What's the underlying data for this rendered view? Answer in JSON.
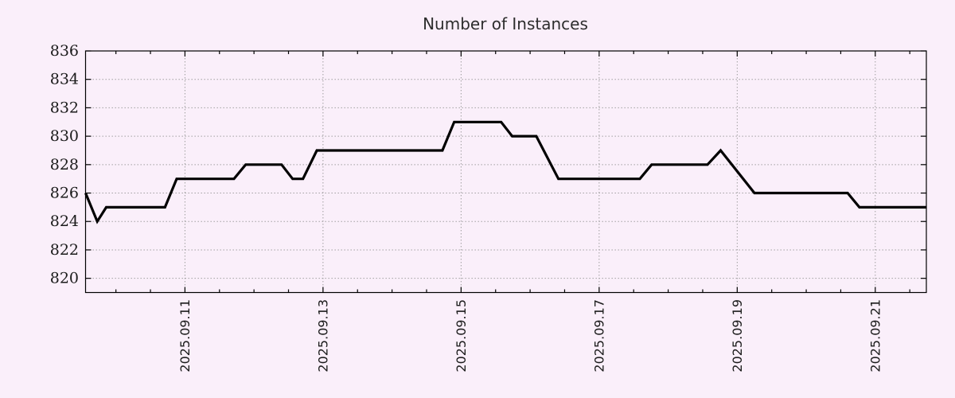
{
  "title": "Number of Instances",
  "colors": {
    "background": "#faeffa",
    "grid": "#9a9a9a",
    "axis_border": "#000000",
    "series_line": "#000000",
    "title_text": "#2d2d2d",
    "tick_text": "#1b1b1b"
  },
  "chart_data": {
    "type": "line",
    "title": "Number of Instances",
    "legend": false,
    "grid": true,
    "x_axis": {
      "kind": "time",
      "tick_labels": [
        "2025.09.11",
        "2025.09.13",
        "2025.09.15",
        "2025.09.17",
        "2025.09.19",
        "2025.09.21"
      ],
      "major_tick_positions_days": [
        0,
        2,
        4,
        6,
        8,
        10
      ],
      "minor_tick_step_days": 0.5,
      "range_days": [
        -1.44,
        10.74
      ],
      "label_rotation_deg": -90
    },
    "y_axis": {
      "tick_labels": [
        "820",
        "822",
        "824",
        "826",
        "828",
        "830",
        "832",
        "834",
        "836"
      ],
      "tick_values": [
        820,
        822,
        824,
        826,
        828,
        830,
        832,
        834,
        836
      ],
      "gridline_values": [
        820,
        822,
        824,
        826,
        828,
        830,
        832,
        834
      ],
      "range": [
        819,
        836
      ]
    },
    "series": [
      {
        "name": "instances",
        "color": "#000000",
        "points_days_value": [
          [
            -1.44,
            826
          ],
          [
            -1.27,
            824
          ],
          [
            -1.14,
            825
          ],
          [
            -0.29,
            825
          ],
          [
            -0.12,
            827
          ],
          [
            0.71,
            827
          ],
          [
            0.88,
            828
          ],
          [
            1.4,
            828
          ],
          [
            1.56,
            827
          ],
          [
            1.71,
            827
          ],
          [
            1.91,
            829
          ],
          [
            3.73,
            829
          ],
          [
            3.9,
            831
          ],
          [
            4.58,
            831
          ],
          [
            4.74,
            830
          ],
          [
            5.09,
            830
          ],
          [
            5.41,
            827
          ],
          [
            6.59,
            827
          ],
          [
            6.76,
            828
          ],
          [
            7.57,
            828
          ],
          [
            7.76,
            829
          ],
          [
            8.25,
            826
          ],
          [
            9.6,
            826
          ],
          [
            9.77,
            825
          ],
          [
            10.74,
            825
          ]
        ]
      }
    ]
  }
}
